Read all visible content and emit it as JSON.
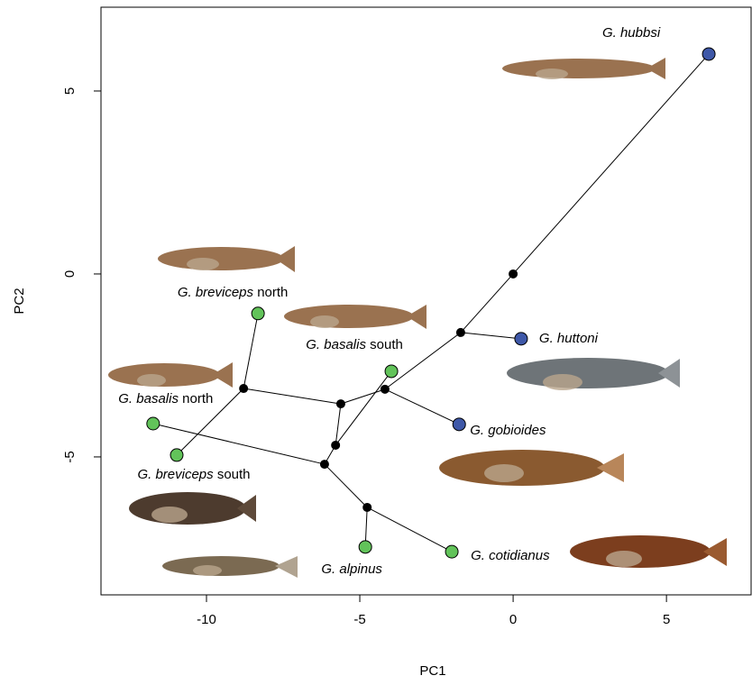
{
  "chart_data": {
    "type": "scatter",
    "x_label": "PC1",
    "y_label": "PC2",
    "xlim": [
      -13.44,
      7.76
    ],
    "ylim": [
      -8.77,
      7.29
    ],
    "xticks": [
      -10,
      -5,
      0,
      5
    ],
    "yticks": [
      5,
      0,
      -5
    ],
    "points": [
      {
        "x": 0,
        "y": 0,
        "color": "#000000"
      },
      {
        "x": -1.71,
        "y": -1.6,
        "color": "#000000"
      },
      {
        "x": -4.18,
        "y": -3.15,
        "color": "#000000"
      },
      {
        "x": -5.62,
        "y": -3.55,
        "color": "#000000"
      },
      {
        "x": -5.79,
        "y": -4.68,
        "color": "#000000"
      },
      {
        "x": -6.15,
        "y": -5.2,
        "color": "#000000"
      },
      {
        "x": -4.76,
        "y": -6.38,
        "color": "#000000"
      },
      {
        "x": -8.79,
        "y": -3.13,
        "color": "#000000"
      },
      {
        "x": 6.38,
        "y": 6.01,
        "color": "#3e58a8",
        "label": "G. hubbsi"
      },
      {
        "x": 0.26,
        "y": -1.77,
        "color": "#3e58a8",
        "label": "G. huttoni"
      },
      {
        "x": -1.76,
        "y": -4.11,
        "color": "#3e58a8",
        "label": "G. gobioides"
      },
      {
        "x": -8.32,
        "y": -1.08,
        "color": "#62c35a",
        "label": "G. breviceps",
        "qualifier": "north"
      },
      {
        "x": -3.97,
        "y": -2.66,
        "color": "#62c35a",
        "label": "G. basalis",
        "qualifier": "south"
      },
      {
        "x": -11.74,
        "y": -4.09,
        "color": "#62c35a",
        "label": "G. basalis",
        "qualifier": "north"
      },
      {
        "x": -10.97,
        "y": -4.95,
        "color": "#62c35a",
        "label": "G. breviceps",
        "qualifier": "south"
      },
      {
        "x": -4.82,
        "y": -7.46,
        "color": "#62c35a",
        "label": "G. alpinus"
      },
      {
        "x": -2.0,
        "y": -7.59,
        "color": "#62c35a",
        "label": "G. cotidianus"
      }
    ],
    "edges": [
      [
        0,
        8
      ],
      [
        0,
        1
      ],
      [
        1,
        9
      ],
      [
        1,
        2
      ],
      [
        2,
        10
      ],
      [
        2,
        3
      ],
      [
        3,
        7
      ],
      [
        3,
        4
      ],
      [
        4,
        12
      ],
      [
        4,
        5
      ],
      [
        5,
        13
      ],
      [
        5,
        6
      ],
      [
        6,
        15
      ],
      [
        6,
        16
      ],
      [
        7,
        11
      ],
      [
        7,
        14
      ]
    ]
  }
}
